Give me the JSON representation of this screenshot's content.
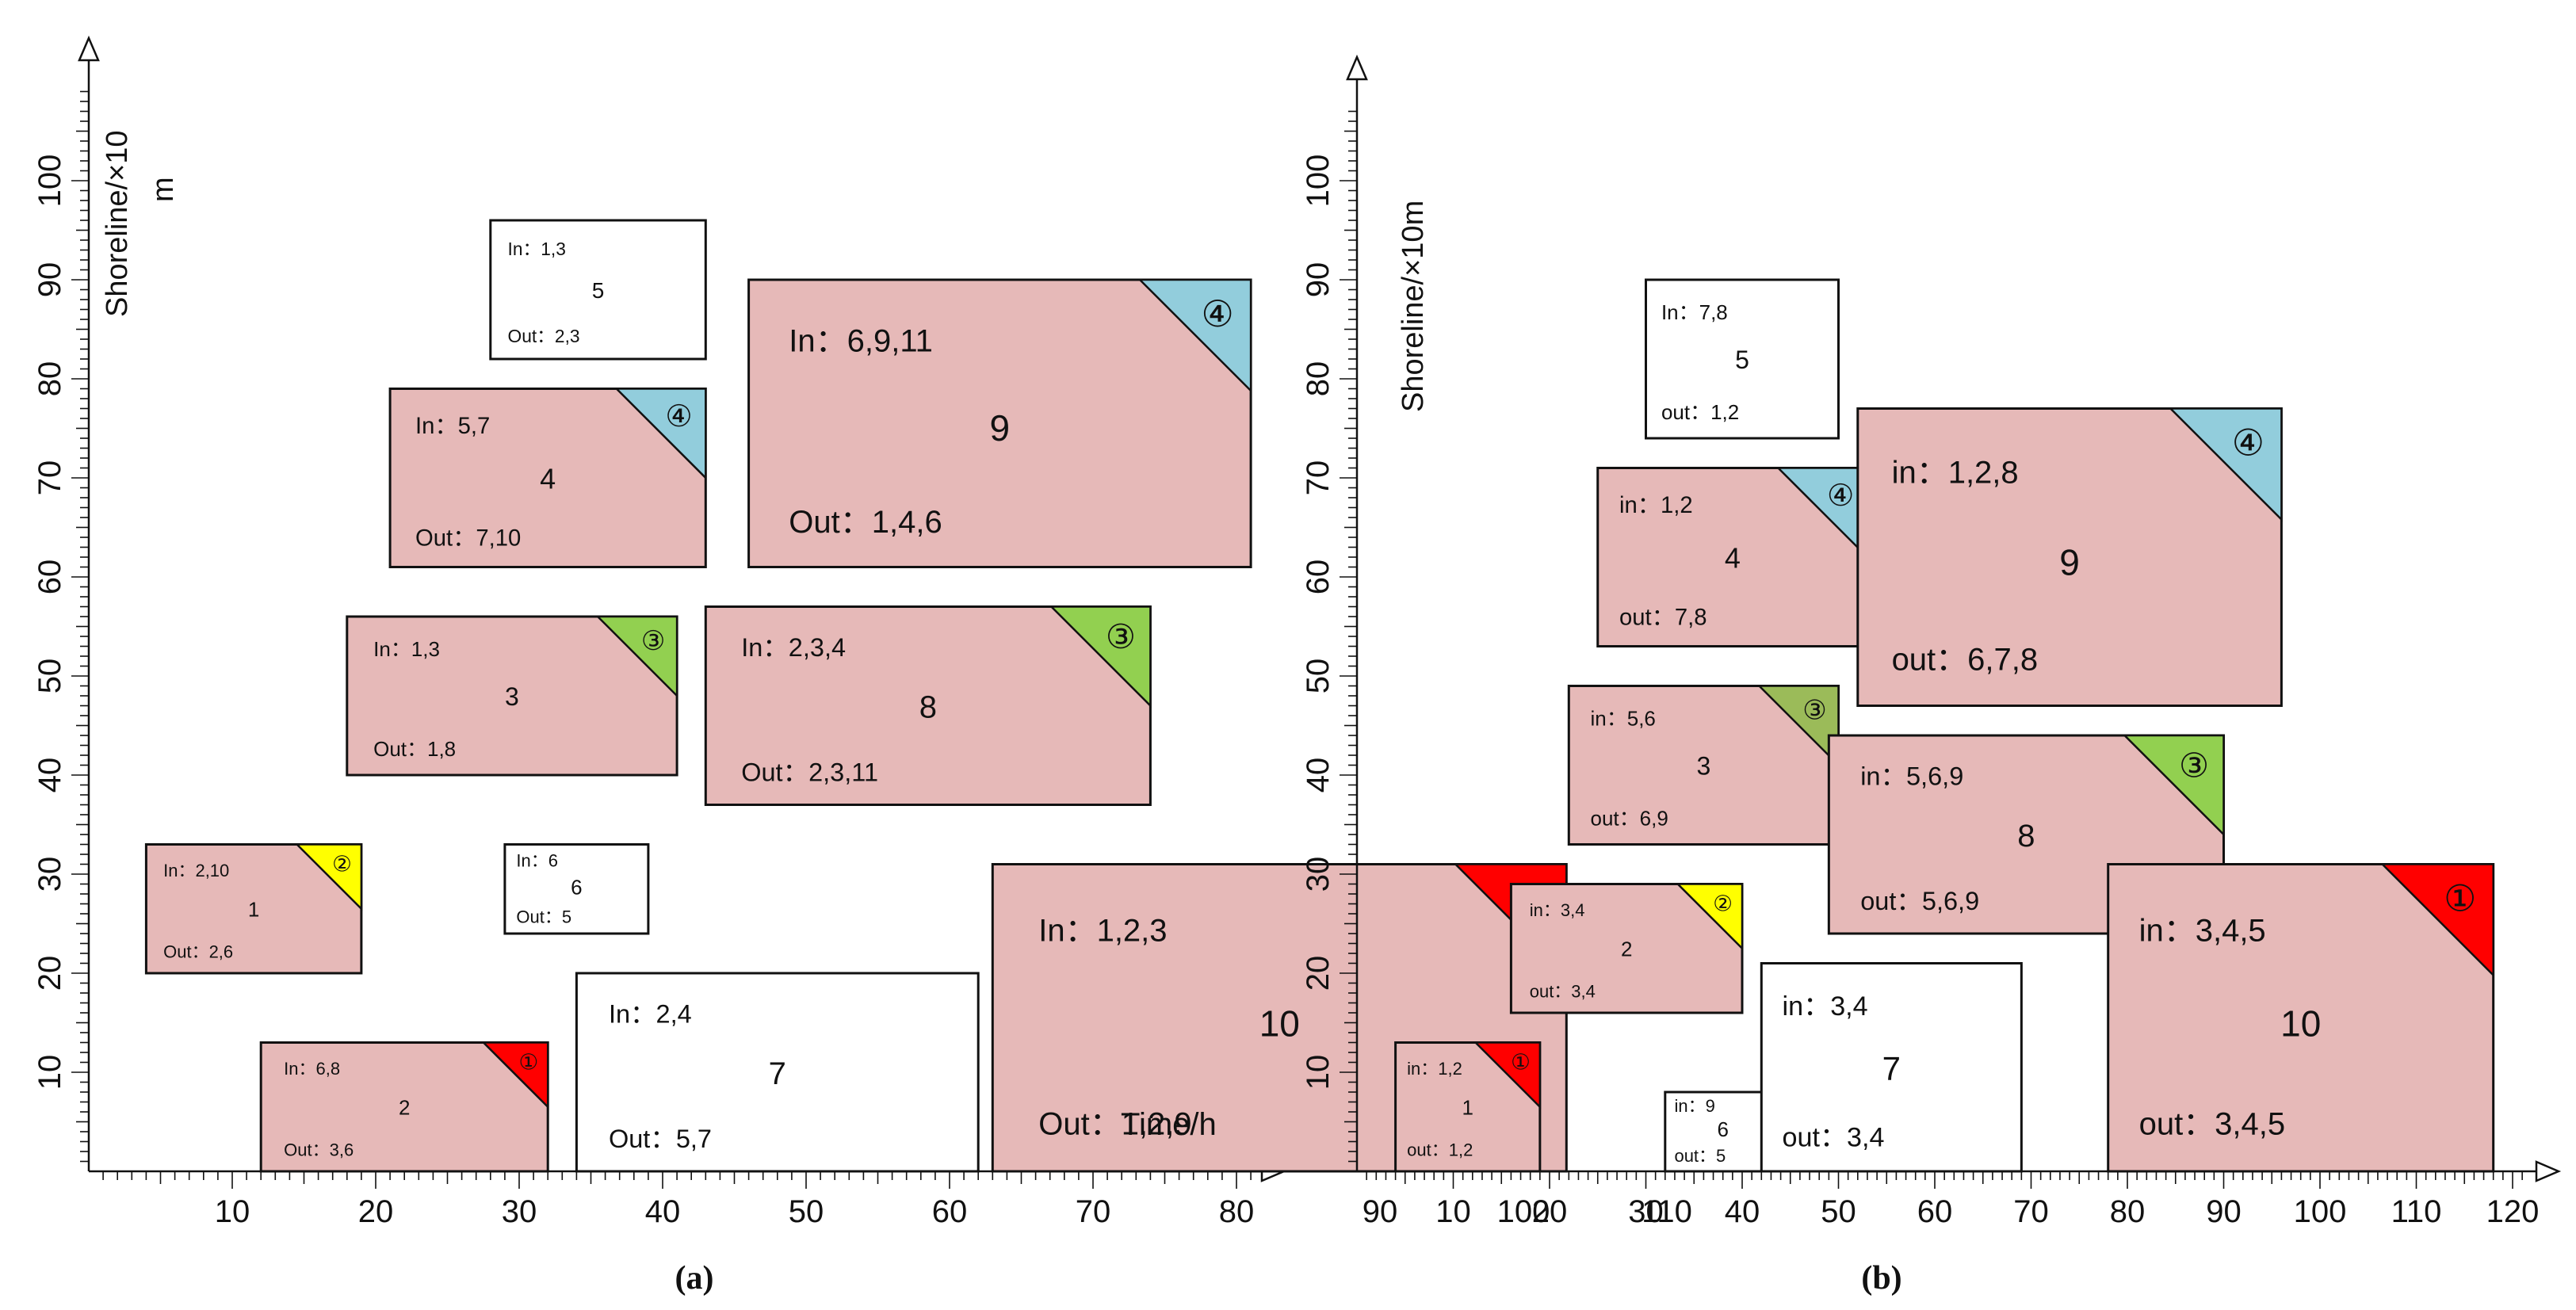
{
  "colors": {
    "block_fill": "#e6b9b8",
    "plain_fill": "#ffffff",
    "stroke": "#111111",
    "corner_red": "#ff0000",
    "corner_yellow": "#ffff00",
    "corner_green": "#92d050",
    "corner_blue": "#92cddc",
    "corner_green_dark": "#9bbb59"
  },
  "panel_a": {
    "caption": "(a)",
    "x_label": "Time/h",
    "y_label_line1": "Shoreline/×10",
    "y_label_line2": "m",
    "x_ticks": [
      "10",
      "20",
      "30",
      "40",
      "50",
      "60",
      "70",
      "80",
      "90",
      "100",
      "110"
    ],
    "y_ticks": [
      "10",
      "20",
      "30",
      "40",
      "50",
      "60",
      "70",
      "80",
      "90",
      "100"
    ],
    "blocks": [
      {
        "id": "1",
        "in": "In：2,10",
        "label": "1",
        "out": "Out：2,6",
        "fill": "pink",
        "corner": "②",
        "corner_color": "corner_yellow",
        "x": [
          4,
          19
        ],
        "y": [
          20,
          33
        ]
      },
      {
        "id": "2",
        "in": "In：6,8",
        "label": "2",
        "out": "Out：3,6",
        "fill": "pink",
        "corner": "①",
        "corner_color": "corner_red",
        "x": [
          12,
          32
        ],
        "y": [
          0,
          13
        ]
      },
      {
        "id": "3",
        "in": "In：1,3",
        "label": "3",
        "out": "Out：1,8",
        "fill": "pink",
        "corner": "③",
        "corner_color": "corner_green",
        "x": [
          18,
          41
        ],
        "y": [
          40,
          56
        ]
      },
      {
        "id": "4",
        "in": "In：5,7",
        "label": "4",
        "out": "Out：7,10",
        "fill": "pink",
        "corner": "④",
        "corner_color": "corner_blue",
        "x": [
          21,
          43
        ],
        "y": [
          61,
          79
        ]
      },
      {
        "id": "5",
        "in": "In：1,3",
        "label": "5",
        "out": "Out：2,3",
        "fill": "white",
        "x": [
          28,
          43
        ],
        "y": [
          82,
          96
        ]
      },
      {
        "id": "6",
        "in": "In：6",
        "label": "6",
        "out": "Out：5",
        "fill": "white",
        "x": [
          29,
          39
        ],
        "y": [
          24,
          33
        ]
      },
      {
        "id": "7",
        "in": "In：2,4",
        "label": "7",
        "out": "Out：5,7",
        "fill": "white",
        "x": [
          34,
          62
        ],
        "y": [
          0,
          20
        ]
      },
      {
        "id": "8",
        "in": "In：2,3,4",
        "label": "8",
        "out": "Out：2,3,11",
        "fill": "pink",
        "corner": "③",
        "corner_color": "corner_green",
        "x": [
          43,
          74
        ],
        "y": [
          37,
          57
        ]
      },
      {
        "id": "9",
        "in": "In：6,9,11",
        "label": "9",
        "out": "Out：1,4,6",
        "fill": "pink",
        "corner": "④",
        "corner_color": "corner_blue",
        "x": [
          46,
          81
        ],
        "y": [
          61,
          90
        ]
      },
      {
        "id": "10",
        "in": "In：1,2,3",
        "label": "10",
        "out": "Out：1,2,9",
        "fill": "pink",
        "corner": "①",
        "corner_color": "corner_red",
        "x": [
          63,
          103
        ],
        "y": [
          0,
          31
        ]
      }
    ]
  },
  "panel_b": {
    "caption": "(b)",
    "y_label": "Shoreline/×10m",
    "x_ticks": [
      "10",
      "20",
      "30",
      "40",
      "50",
      "60",
      "70",
      "80",
      "90",
      "100",
      "110",
      "120"
    ],
    "y_ticks": [
      "10",
      "20",
      "30",
      "40",
      "50",
      "60",
      "70",
      "80",
      "90",
      "100"
    ],
    "blocks": [
      {
        "id": "1",
        "in": "in：1,2",
        "label": "1",
        "out": "out：1,2",
        "fill": "pink",
        "corner": "①",
        "corner_color": "corner_red",
        "x": [
          4,
          19
        ],
        "y": [
          0,
          13
        ]
      },
      {
        "id": "2",
        "in": "in：3,4",
        "label": "2",
        "out": "out：3,4",
        "fill": "pink",
        "corner": "②",
        "corner_color": "corner_yellow",
        "x": [
          16,
          40
        ],
        "y": [
          16,
          29
        ]
      },
      {
        "id": "3",
        "in": "in：5,6",
        "label": "3",
        "out": "out：6,9",
        "fill": "pink",
        "corner": "③",
        "corner_color": "corner_green_dark",
        "x": [
          22,
          50
        ],
        "y": [
          33,
          49
        ]
      },
      {
        "id": "4",
        "in": "in：1,2",
        "label": "4",
        "out": "out：7,8",
        "fill": "pink",
        "corner": "④",
        "corner_color": "corner_blue",
        "x": [
          25,
          53
        ],
        "y": [
          53,
          71
        ]
      },
      {
        "id": "5",
        "in": "In：7,8",
        "label": "5",
        "out": "out：1,2",
        "fill": "white",
        "x": [
          30,
          50
        ],
        "y": [
          74,
          90
        ]
      },
      {
        "id": "6",
        "in": "in：9",
        "label": "6",
        "out": "out：5",
        "fill": "white",
        "x": [
          32,
          44
        ],
        "y": [
          0,
          8
        ]
      },
      {
        "id": "7",
        "in": "in：3,4",
        "label": "7",
        "out": "out：3,4",
        "fill": "white",
        "x": [
          42,
          69
        ],
        "y": [
          0,
          21
        ]
      },
      {
        "id": "8",
        "in": "in：5,6,9",
        "label": "8",
        "out": "out：5,6,9",
        "fill": "pink",
        "corner": "③",
        "corner_color": "corner_green",
        "x": [
          49,
          90
        ],
        "y": [
          24,
          44
        ]
      },
      {
        "id": "9",
        "in": "in：1,2,8",
        "label": "9",
        "out": "out：6,7,8",
        "fill": "pink",
        "corner": "④",
        "corner_color": "corner_blue",
        "x": [
          52,
          96
        ],
        "y": [
          47,
          77
        ]
      },
      {
        "id": "10",
        "in": "in：3,4,5",
        "label": "10",
        "out": "out：3,4,5",
        "fill": "pink",
        "corner": "①",
        "corner_color": "corner_red",
        "x": [
          78,
          118
        ],
        "y": [
          0,
          31
        ]
      }
    ]
  }
}
